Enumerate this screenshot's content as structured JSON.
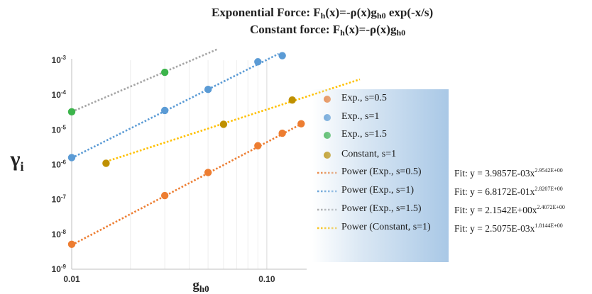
{
  "chart_data": {
    "type": "scatter",
    "title_lines": [
      {
        "text": "Exponential Force: F",
        "sub": "h",
        "rest": "(x)=-ρ(x)g",
        "sub2": "h0",
        "tail": " exp(-x/s)"
      },
      {
        "text": "Constant force: F",
        "sub": "h",
        "rest": "(x)=-ρ(x)g",
        "sub2": "h0",
        "tail": ""
      }
    ],
    "xlabel": "g",
    "xlabel_sub": "h0",
    "ylabel": "γ",
    "ylabel_sub": "i",
    "x_scale": "log",
    "y_scale": "log",
    "xlim": [
      0.01,
      0.16
    ],
    "ylim": [
      1e-09,
      0.001
    ],
    "x_ticks": [
      {
        "value": 0.01,
        "label": "0.01"
      },
      {
        "value": 0.1,
        "label": "0.10"
      }
    ],
    "y_ticks": [
      {
        "value": 1e-09,
        "base": "10",
        "exp": "-9"
      },
      {
        "value": 1e-08,
        "base": "10",
        "exp": "-8"
      },
      {
        "value": 1e-07,
        "base": "10",
        "exp": "-7"
      },
      {
        "value": 1e-06,
        "base": "10",
        "exp": "-6"
      },
      {
        "value": 1e-05,
        "base": "10",
        "exp": "-5"
      },
      {
        "value": 0.0001,
        "base": "10",
        "exp": "-4"
      },
      {
        "value": 0.001,
        "base": "10",
        "exp": "-3"
      }
    ],
    "grid": "vertical",
    "series": [
      {
        "name": "Exp., s=0.5",
        "color": "#ed7d31",
        "x": [
          0.01,
          0.03,
          0.05,
          0.09,
          0.12,
          0.15
        ],
        "y": [
          5.2e-09,
          1.3e-07,
          6e-07,
          3.5e-06,
          8e-06,
          1.5e-05
        ],
        "fit": {
          "label": "Power (Exp., s=0.5)",
          "a": 0.0039857,
          "b": 2.9542,
          "x_range": [
            0.01,
            0.155
          ],
          "text": "Fit: y = 3.9857E-03x",
          "exp_text": "2.9542E+00"
        }
      },
      {
        "name": "Exp., s=1",
        "color": "#5b9bd5",
        "x": [
          0.01,
          0.03,
          0.05,
          0.09,
          0.12
        ],
        "y": [
          1.6e-06,
          3.6e-05,
          0.000145,
          0.0009,
          0.00135
        ],
        "fit": {
          "label": "Power (Exp., s=1)",
          "a": 0.68172,
          "b": 2.8207,
          "x_range": [
            0.01,
            0.115
          ],
          "text": "Fit: y = 6.8172E-01x",
          "exp_text": "2.8207E+00"
        }
      },
      {
        "name": "Exp., s=1.5",
        "color": "#3cb44b",
        "x": [
          0.01,
          0.03
        ],
        "y": [
          3.3e-05,
          0.00045
        ],
        "fit": {
          "label": "Power (Exp., s=1.5)",
          "a": 2.1542,
          "b": 2.4072,
          "x_range": [
            0.01,
            0.056
          ],
          "text": "Fit: y = 2.1542E+00x",
          "exp_text": "2.4072E+00"
        }
      },
      {
        "name": "Constant, s=1",
        "color": "#bf9000",
        "x": [
          0.015,
          0.06,
          0.135
        ],
        "y": [
          1.1e-06,
          1.45e-05,
          7.2e-05
        ],
        "fit": {
          "label": "Power (Constant, s=1)",
          "a": 0.0025075,
          "b": 1.8144,
          "x_range": [
            0.015,
            0.3
          ],
          "text": "Fit: y = 2.5075E-03x",
          "exp_text": "1.8144E+00"
        }
      }
    ],
    "fit_line_colors": [
      "#ed7d31",
      "#5b9bd5",
      "#a5a5a5",
      "#ffc000"
    ],
    "legend_position": "right"
  }
}
